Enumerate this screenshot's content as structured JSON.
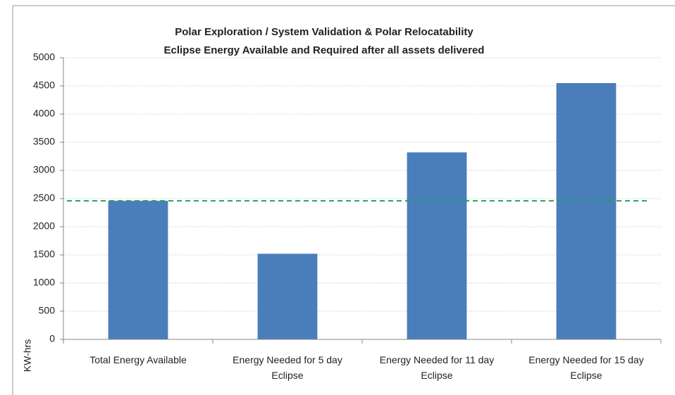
{
  "chart_data": {
    "type": "bar",
    "title": [
      "Polar Exploration / System Validation & Polar Relocatability",
      "Eclipse Energy Available and Required after all assets delivered"
    ],
    "y_label": "KW-hrs",
    "categories": [
      "Total Energy Available",
      "Energy Needed for 5 day Eclipse",
      "Energy Needed for 11 day Eclipse",
      "Energy Needed for 15 day Eclipse"
    ],
    "values": [
      2460,
      1520,
      3320,
      4550
    ],
    "color": "#4a7ebb",
    "reference_line": {
      "value": 2460,
      "color": "#1f9e5a"
    },
    "ylim": [
      0,
      5000
    ],
    "yticks": [
      0,
      500,
      1000,
      1500,
      2000,
      2500,
      3000,
      3500,
      4000,
      4500,
      5000
    ],
    "grid": true
  }
}
